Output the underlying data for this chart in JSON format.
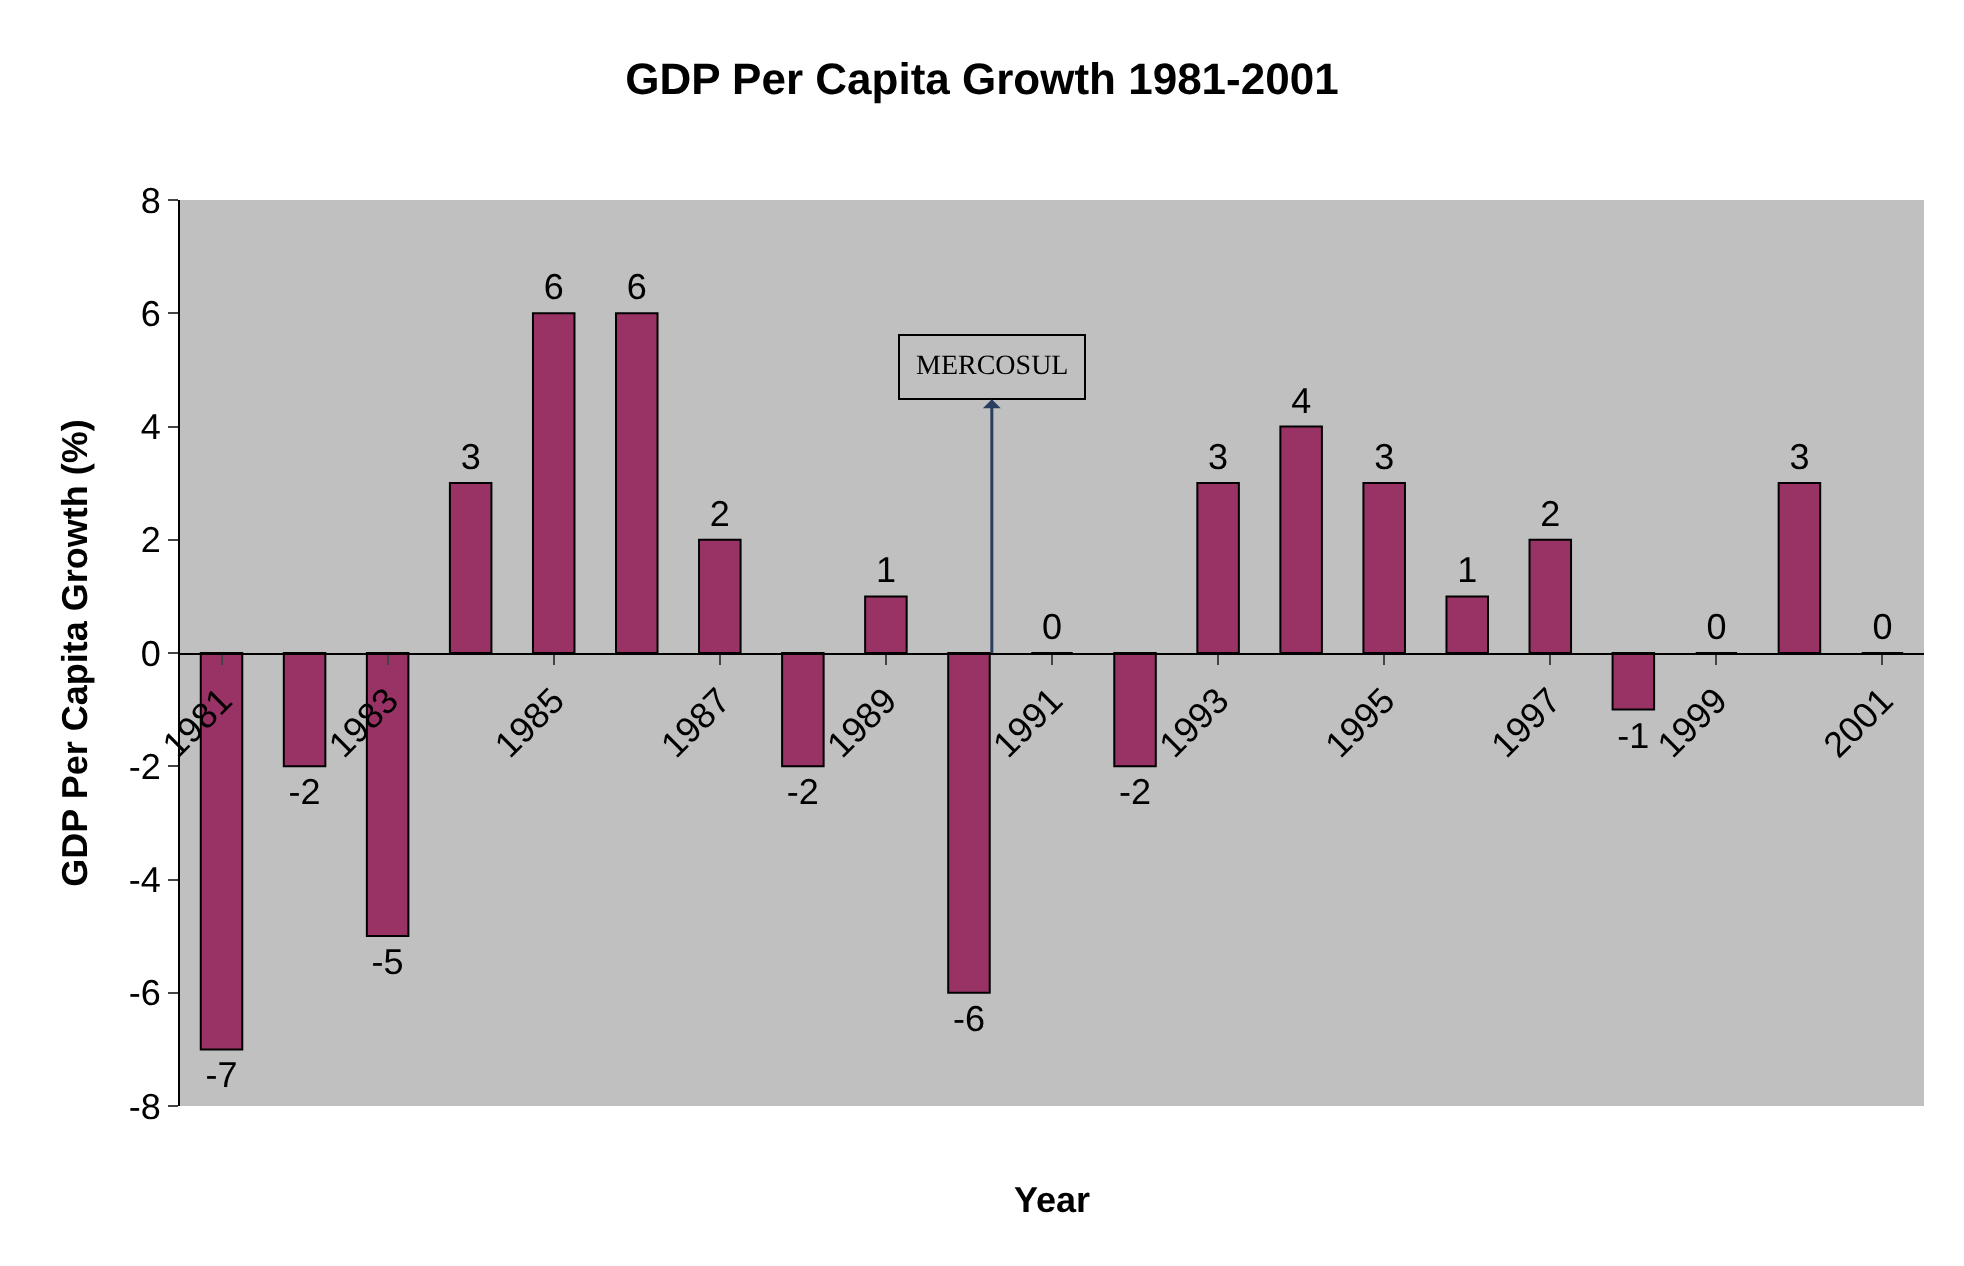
{
  "chart_data": {
    "type": "bar",
    "title": "GDP Per Capita Growth 1981-2001",
    "xlabel": "Year",
    "ylabel": "GDP Per Capita Growth (%)",
    "categories": [
      "1981",
      null,
      "1983",
      null,
      "1985",
      null,
      "1987",
      null,
      "1989",
      null,
      "1991",
      null,
      "1993",
      null,
      "1995",
      null,
      "1997",
      null,
      "1999",
      null,
      "2001"
    ],
    "values": [
      -7,
      -2,
      -5,
      3,
      6,
      6,
      2,
      -2,
      1,
      -6,
      0,
      -2,
      3,
      4,
      3,
      1,
      2,
      -1,
      0,
      3,
      0
    ],
    "color": "#993366",
    "ylim": [
      -8,
      8
    ],
    "yticks": [
      -8,
      -6,
      -4,
      -2,
      0,
      2,
      4,
      6,
      8
    ],
    "data_labels": true,
    "grid": false,
    "legend": false,
    "annotations": [
      "MERCOSUL"
    ]
  }
}
